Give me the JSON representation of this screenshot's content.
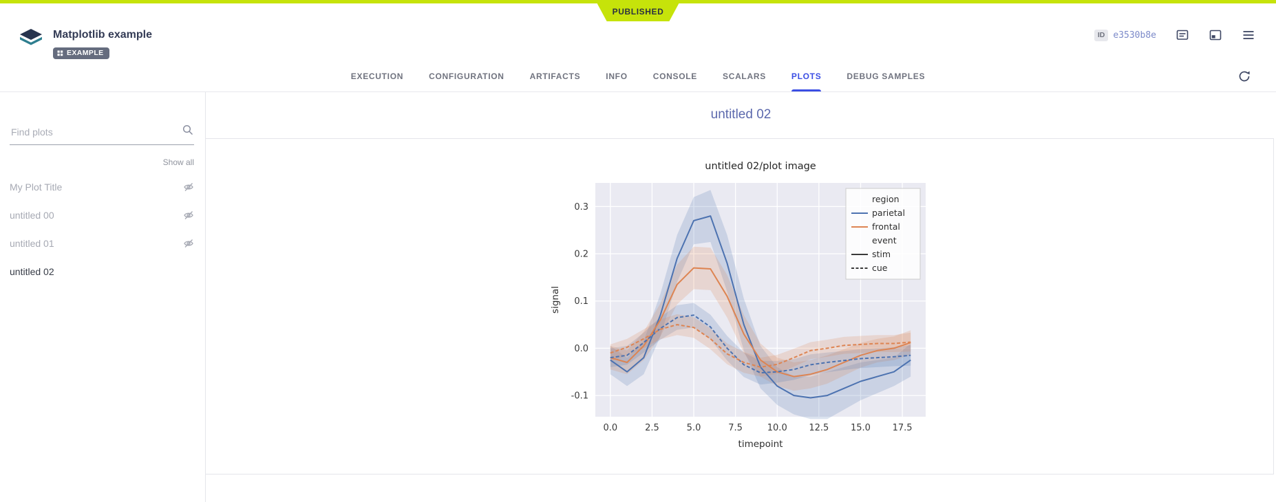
{
  "colors": {
    "published": "#c6e30a",
    "accent_blue": "#3b4ee4"
  },
  "status_ribbon": {
    "label": "PUBLISHED"
  },
  "header": {
    "title": "Matplotlib example",
    "badge": "EXAMPLE",
    "id_label": "ID",
    "id_value": "e3530b8e"
  },
  "tabs": {
    "active": "PLOTS",
    "items": [
      {
        "label": "EXECUTION"
      },
      {
        "label": "CONFIGURATION"
      },
      {
        "label": "ARTIFACTS"
      },
      {
        "label": "INFO"
      },
      {
        "label": "CONSOLE"
      },
      {
        "label": "SCALARS"
      },
      {
        "label": "PLOTS"
      },
      {
        "label": "DEBUG SAMPLES"
      }
    ]
  },
  "sidebar": {
    "search_placeholder": "Find plots",
    "show_all": "Show all",
    "items": [
      {
        "label": "My Plot Title",
        "hidden": true
      },
      {
        "label": "untitled 00",
        "hidden": true
      },
      {
        "label": "untitled 01",
        "hidden": true
      },
      {
        "label": "untitled 02",
        "hidden": false,
        "selected": true
      }
    ]
  },
  "main": {
    "heading": "untitled 02"
  },
  "chart_data": {
    "type": "line",
    "title": "untitled 02/plot image",
    "xlabel": "timepoint",
    "ylabel": "signal",
    "x": [
      0,
      1,
      2,
      3,
      4,
      5,
      6,
      7,
      8,
      9,
      10,
      11,
      12,
      13,
      14,
      15,
      16,
      17,
      18
    ],
    "xticks": [
      0,
      2.5,
      5,
      7.5,
      10,
      12.5,
      15,
      17.5
    ],
    "yticks": [
      -0.1,
      0,
      0.1,
      0.2,
      0.3
    ],
    "xlim": [
      -0.9,
      18.9
    ],
    "ylim": [
      -0.145,
      0.35
    ],
    "axes_bg": "#eaeaf2",
    "grid_color": "#ffffff",
    "grid": true,
    "series": [
      {
        "name": "parietal / stim",
        "color": "#4c72b0",
        "dash": null,
        "mean": [
          -0.025,
          -0.05,
          -0.02,
          0.07,
          0.19,
          0.27,
          0.28,
          0.18,
          0.05,
          -0.04,
          -0.08,
          -0.1,
          -0.105,
          -0.1,
          -0.085,
          -0.07,
          -0.06,
          -0.05,
          -0.025
        ],
        "err": [
          0.03,
          0.03,
          0.035,
          0.045,
          0.05,
          0.05,
          0.055,
          0.06,
          0.055,
          0.045,
          0.04,
          0.04,
          0.045,
          0.05,
          0.045,
          0.04,
          0.035,
          0.03,
          0.035
        ]
      },
      {
        "name": "frontal / stim",
        "color": "#dd8452",
        "dash": null,
        "mean": [
          -0.02,
          -0.03,
          0.005,
          0.06,
          0.135,
          0.17,
          0.168,
          0.11,
          0.03,
          -0.025,
          -0.05,
          -0.06,
          -0.055,
          -0.045,
          -0.03,
          -0.015,
          -0.005,
          0.0,
          0.012
        ],
        "err": [
          0.025,
          0.025,
          0.03,
          0.035,
          0.042,
          0.045,
          0.045,
          0.045,
          0.04,
          0.035,
          0.03,
          0.03,
          0.03,
          0.03,
          0.028,
          0.026,
          0.025,
          0.025,
          0.026
        ]
      },
      {
        "name": "parietal / cue",
        "color": "#4c72b0",
        "dash": "5,3",
        "mean": [
          -0.02,
          -0.015,
          0.012,
          0.042,
          0.065,
          0.07,
          0.045,
          0.0,
          -0.035,
          -0.052,
          -0.05,
          -0.045,
          -0.035,
          -0.03,
          -0.026,
          -0.022,
          -0.02,
          -0.018,
          -0.015
        ],
        "err": [
          0.02,
          0.02,
          0.021,
          0.024,
          0.026,
          0.026,
          0.026,
          0.026,
          0.026,
          0.025,
          0.023,
          0.022,
          0.022,
          0.021,
          0.02,
          0.02,
          0.02,
          0.02,
          0.022
        ]
      },
      {
        "name": "frontal / cue",
        "color": "#dd8452",
        "dash": "5,3",
        "mean": [
          -0.01,
          0.002,
          0.02,
          0.04,
          0.05,
          0.044,
          0.02,
          -0.012,
          -0.03,
          -0.04,
          -0.034,
          -0.02,
          -0.005,
          0.0,
          0.006,
          0.008,
          0.01,
          0.01,
          0.013
        ],
        "err": [
          0.018,
          0.018,
          0.02,
          0.021,
          0.022,
          0.022,
          0.022,
          0.022,
          0.022,
          0.02,
          0.02,
          0.019,
          0.018,
          0.018,
          0.018,
          0.018,
          0.018,
          0.018,
          0.02
        ]
      }
    ],
    "legend": {
      "position": "upper right",
      "entries": [
        {
          "type": "title",
          "label": "region"
        },
        {
          "type": "item",
          "label": "parietal",
          "color": "#4c72b0",
          "dash": null
        },
        {
          "type": "item",
          "label": "frontal",
          "color": "#dd8452",
          "dash": null
        },
        {
          "type": "title",
          "label": "event"
        },
        {
          "type": "item",
          "label": "stim",
          "color": "#3a3a3a",
          "dash": null
        },
        {
          "type": "item",
          "label": "cue",
          "color": "#3a3a3a",
          "dash": "4,2.5"
        }
      ]
    }
  }
}
